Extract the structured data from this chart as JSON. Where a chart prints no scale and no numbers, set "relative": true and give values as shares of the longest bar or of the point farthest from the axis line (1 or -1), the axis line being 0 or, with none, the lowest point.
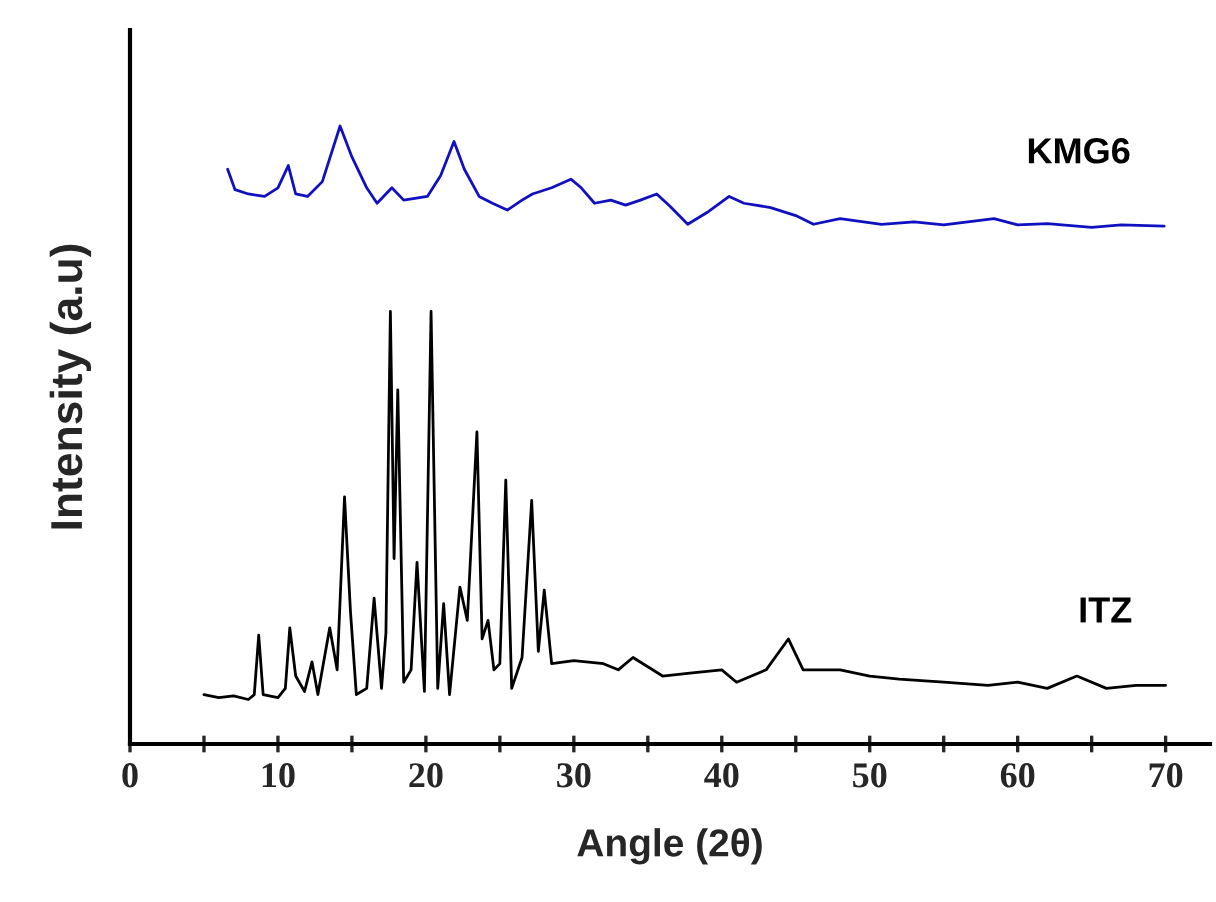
{
  "chart_data": {
    "type": "line",
    "xlabel": "Angle (2θ)",
    "ylabel": "Intensity (a.u)",
    "relative": true,
    "xlim": [
      0,
      73
    ],
    "xticks": [
      0,
      {
        "value": 5,
        "label": null
      },
      10,
      {
        "value": 15,
        "label": null
      },
      20,
      {
        "value": 25,
        "label": null
      },
      30,
      {
        "value": 35,
        "label": null
      },
      40,
      {
        "value": 45,
        "label": null
      },
      50,
      {
        "value": 55,
        "label": null
      },
      60,
      {
        "value": 65,
        "label": null
      },
      70
    ],
    "grid": false,
    "legend": false,
    "marker": "none",
    "line_style": "solid",
    "series": [
      {
        "name": "KMG6",
        "color": "#1010c0",
        "x": [
          6.6,
          7.1,
          8.0,
          9.1,
          10.0,
          10.7,
          11.2,
          12.0,
          13.0,
          14.2,
          15.0,
          16.0,
          16.7,
          17.7,
          18.5,
          20.1,
          21.0,
          21.9,
          22.6,
          23.6,
          24.5,
          25.5,
          26.5,
          27.2,
          28.5,
          29.8,
          30.5,
          31.4,
          32.5,
          33.5,
          34.5,
          35.6,
          36.5,
          37.7,
          39.0,
          40.5,
          41.5,
          43.3,
          45.0,
          46.2,
          48.0,
          50.8,
          53.0,
          55.0,
          58.4,
          60.0,
          62.0,
          65.0,
          67.0,
          69.9
        ],
        "values": [
          0.93,
          0.897,
          0.89,
          0.886,
          0.9,
          0.936,
          0.89,
          0.886,
          0.91,
          1,
          0.95,
          0.9,
          0.875,
          0.9,
          0.88,
          0.886,
          0.92,
          0.975,
          0.93,
          0.886,
          0.875,
          0.864,
          0.88,
          0.89,
          0.9,
          0.914,
          0.9,
          0.875,
          0.88,
          0.872,
          0.88,
          0.89,
          0.87,
          0.841,
          0.86,
          0.886,
          0.875,
          0.868,
          0.855,
          0.841,
          0.85,
          0.841,
          0.845,
          0.84,
          0.85,
          0.84,
          0.842,
          0.836,
          0.84,
          0.838
        ]
      },
      {
        "name": "ITZ",
        "color": "#000000",
        "x": [
          5.0,
          6.0,
          7.0,
          8.0,
          8.4,
          8.7,
          9.0,
          10.0,
          10.5,
          10.8,
          11.2,
          11.8,
          12.3,
          12.7,
          13.5,
          14.0,
          14.5,
          14.9,
          15.3,
          16.0,
          16.5,
          17.0,
          17.3,
          17.6,
          17.85,
          18.1,
          18.5,
          19.0,
          19.4,
          19.9,
          20.35,
          20.8,
          21.2,
          21.6,
          22.3,
          22.8,
          23.45,
          23.8,
          24.2,
          24.6,
          25.0,
          25.4,
          25.8,
          26.5,
          27.15,
          27.6,
          28.0,
          28.5,
          30.0,
          32.0,
          33.0,
          34.0,
          36.0,
          38.0,
          40.0,
          41.0,
          43.0,
          44.5,
          45.5,
          48.0,
          50.0,
          52.0,
          55.0,
          58.0,
          60.0,
          62.0,
          64.0,
          66.0,
          68.0,
          70.0
        ],
        "values": [
          0.08,
          0.075,
          0.078,
          0.072,
          0.08,
          0.176,
          0.08,
          0.075,
          0.09,
          0.188,
          0.11,
          0.085,
          0.133,
          0.08,
          0.188,
          0.12,
          0.4,
          0.215,
          0.08,
          0.09,
          0.236,
          0.09,
          0.18,
          0.7,
          0.3,
          0.573,
          0.1,
          0.12,
          0.294,
          0.085,
          0.7,
          0.09,
          0.227,
          0.08,
          0.254,
          0.2,
          0.505,
          0.17,
          0.2,
          0.12,
          0.13,
          0.427,
          0.09,
          0.14,
          0.394,
          0.15,
          0.249,
          0.13,
          0.135,
          0.13,
          0.12,
          0.14,
          0.11,
          0.115,
          0.12,
          0.1,
          0.12,
          0.17,
          0.12,
          0.12,
          0.11,
          0.105,
          0.1,
          0.095,
          0.1,
          0.09,
          0.11,
          0.09,
          0.095,
          0.095
        ]
      }
    ]
  }
}
